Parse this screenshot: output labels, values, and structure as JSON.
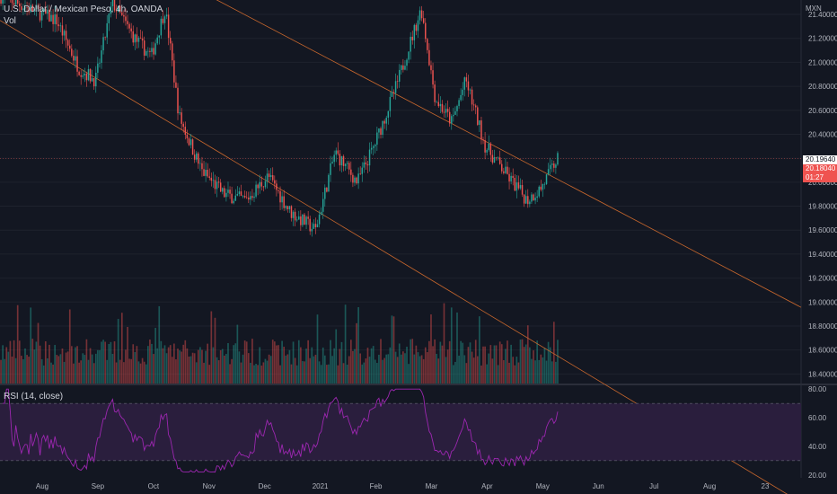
{
  "header": {
    "symbol": "U.S. Dollar / Mexican Peso, 4h, OANDA",
    "vol_label": "Vol",
    "rsi_label": "RSI (14, close)"
  },
  "price_axis": {
    "unit": "MXN",
    "last_price": "20.19640",
    "bid_price": "20.18040",
    "countdown": "01:27"
  },
  "colors": {
    "background": "#131722",
    "up": "#26a69a",
    "down": "#ef5350",
    "trendline": "#c8672d",
    "rsi_line": "#9c27b0",
    "rsi_band": "#2a1e3d",
    "last_tag": "#ffffff",
    "bid_tag": "#ef5350"
  },
  "chart_data": {
    "type": "candlestick",
    "y_ticks": [
      21.4,
      21.2,
      21.0,
      20.8,
      20.6,
      20.4,
      20.2,
      20.0,
      19.8,
      19.6,
      19.4,
      19.2,
      19.0,
      18.8,
      18.6,
      18.4
    ],
    "ylim": [
      18.32,
      21.52
    ],
    "x_ticks": [
      "Aug",
      "Sep",
      "Oct",
      "Nov",
      "Dec",
      "2021",
      "Feb",
      "Mar",
      "Apr",
      "May",
      "Jun",
      "Jul",
      "Aug",
      "23"
    ],
    "price_path": [
      {
        "t": 0.0,
        "p": 21.55
      },
      {
        "t": 0.1,
        "p": 21.35
      },
      {
        "t": 0.14,
        "p": 20.95
      },
      {
        "t": 0.17,
        "p": 20.85
      },
      {
        "t": 0.2,
        "p": 21.5
      },
      {
        "t": 0.24,
        "p": 21.2
      },
      {
        "t": 0.27,
        "p": 21.05
      },
      {
        "t": 0.295,
        "p": 21.45
      },
      {
        "t": 0.32,
        "p": 20.55
      },
      {
        "t": 0.36,
        "p": 20.1
      },
      {
        "t": 0.4,
        "p": 19.9
      },
      {
        "t": 0.44,
        "p": 19.85
      },
      {
        "t": 0.48,
        "p": 20.05
      },
      {
        "t": 0.52,
        "p": 19.75
      },
      {
        "t": 0.565,
        "p": 19.6
      },
      {
        "t": 0.6,
        "p": 20.25
      },
      {
        "t": 0.64,
        "p": 20.0
      },
      {
        "t": 0.67,
        "p": 20.3
      },
      {
        "t": 0.71,
        "p": 20.8
      },
      {
        "t": 0.755,
        "p": 21.45
      },
      {
        "t": 0.78,
        "p": 20.7
      },
      {
        "t": 0.81,
        "p": 20.5
      },
      {
        "t": 0.835,
        "p": 20.85
      },
      {
        "t": 0.87,
        "p": 20.3
      },
      {
        "t": 0.91,
        "p": 20.05
      },
      {
        "t": 0.945,
        "p": 19.85
      },
      {
        "t": 0.97,
        "p": 19.95
      },
      {
        "t": 1.0,
        "p": 20.2
      }
    ],
    "trendlines": [
      {
        "p1": {
          "t": 0.0,
          "p": 21.35
        },
        "p2": {
          "t": 0.606,
          "p": 19.65
        }
      },
      {
        "p1": {
          "t": 0.376,
          "p": 21.55
        },
        "p2": {
          "t": 1.0,
          "p": 20.02
        }
      }
    ],
    "rsi": {
      "y_ticks": [
        80,
        60,
        40,
        20
      ],
      "ylim": [
        18,
        82
      ],
      "upper_band": 70,
      "lower_band": 30
    }
  }
}
